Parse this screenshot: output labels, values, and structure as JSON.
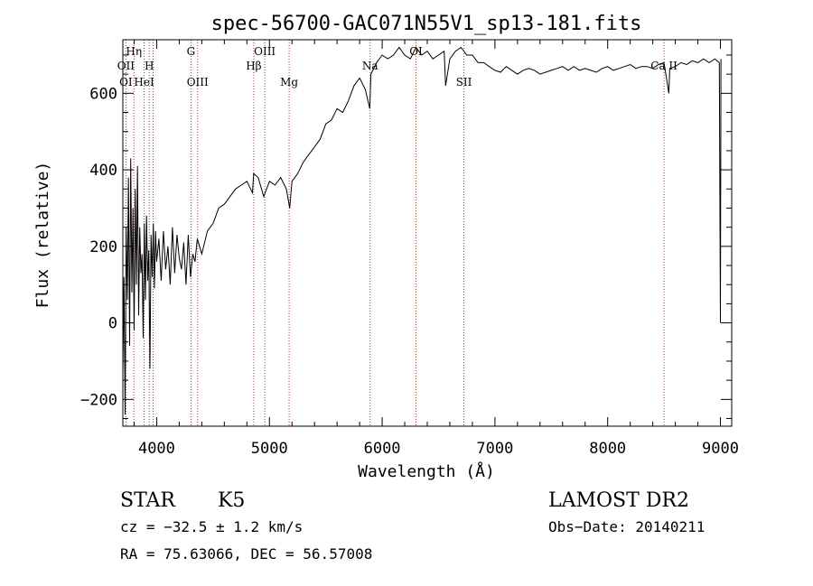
{
  "chart_data": {
    "type": "line",
    "title": "spec-56700-GAC071N55V1_sp13-181.fits",
    "xlabel": "Wavelength (Å)",
    "ylabel": "Flux (relative)",
    "xlim": [
      3700,
      9100
    ],
    "ylim": [
      -270,
      740
    ],
    "x_ticks": [
      4000,
      5000,
      6000,
      7000,
      8000,
      9000
    ],
    "y_ticks": [
      -200,
      0,
      200,
      400,
      600
    ],
    "series": [
      {
        "x": [
          3700,
          3710,
          3720,
          3730,
          3740,
          3750,
          3760,
          3770,
          3780,
          3790,
          3800,
          3810,
          3820,
          3830,
          3840,
          3850,
          3860,
          3870,
          3880,
          3890,
          3900,
          3910,
          3920,
          3930,
          3940,
          3950,
          3960,
          3970,
          3980,
          3990,
          4000,
          4020,
          4040,
          4060,
          4080,
          4100,
          4120,
          4140,
          4160,
          4180,
          4200,
          4220,
          4240,
          4260,
          4280,
          4300,
          4320,
          4340,
          4360,
          4380,
          4400,
          4450,
          4500,
          4550,
          4600,
          4650,
          4700,
          4750,
          4800,
          4850,
          4860,
          4900,
          4950,
          5000,
          5050,
          5100,
          5150,
          5180,
          5200,
          5250,
          5300,
          5350,
          5400,
          5450,
          5500,
          5550,
          5600,
          5650,
          5700,
          5750,
          5800,
          5850,
          5890,
          5900,
          5950,
          6000,
          6050,
          6100,
          6150,
          6200,
          6250,
          6300,
          6350,
          6400,
          6450,
          6500,
          6550,
          6563,
          6600,
          6650,
          6700,
          6750,
          6800,
          6850,
          6900,
          6950,
          7000,
          7050,
          7100,
          7150,
          7200,
          7250,
          7300,
          7350,
          7400,
          7450,
          7500,
          7550,
          7600,
          7650,
          7700,
          7750,
          7800,
          7850,
          7900,
          7950,
          8000,
          8050,
          8100,
          8150,
          8200,
          8250,
          8300,
          8350,
          8400,
          8450,
          8500,
          8542,
          8550,
          8600,
          8650,
          8700,
          8750,
          8800,
          8850,
          8900,
          8950,
          8990,
          9000,
          9005
        ],
        "y": [
          -130,
          120,
          -240,
          250,
          60,
          380,
          -60,
          430,
          80,
          300,
          -20,
          350,
          100,
          410,
          20,
          250,
          130,
          180,
          -40,
          260,
          60,
          280,
          110,
          190,
          -120,
          230,
          120,
          260,
          90,
          240,
          160,
          220,
          110,
          240,
          140,
          200,
          100,
          250,
          130,
          230,
          170,
          140,
          210,
          100,
          230,
          120,
          180,
          160,
          220,
          200,
          180,
          240,
          260,
          300,
          310,
          330,
          350,
          360,
          370,
          340,
          390,
          380,
          330,
          370,
          360,
          380,
          350,
          300,
          370,
          390,
          420,
          440,
          460,
          480,
          520,
          530,
          560,
          550,
          580,
          620,
          640,
          610,
          560,
          650,
          680,
          700,
          690,
          700,
          720,
          700,
          690,
          720,
          700,
          710,
          690,
          700,
          710,
          620,
          690,
          710,
          720,
          700,
          700,
          680,
          680,
          670,
          660,
          655,
          670,
          660,
          650,
          660,
          665,
          660,
          650,
          655,
          660,
          665,
          670,
          660,
          670,
          660,
          665,
          660,
          655,
          665,
          670,
          660,
          665,
          670,
          675,
          665,
          670,
          670,
          665,
          675,
          680,
          600,
          665,
          670,
          680,
          675,
          685,
          680,
          690,
          680,
          690,
          680,
          0,
          690
        ]
      }
    ],
    "lines": [
      {
        "x": 3727,
        "label": "OII",
        "row": 2
      },
      {
        "x": 3798,
        "label": "Hη",
        "row": 1
      },
      {
        "x": 3889,
        "label": "HeI",
        "row": 3
      },
      {
        "x": 3934,
        "label": "H",
        "row": 2
      },
      {
        "x": 3969,
        "label": "",
        "row": 0
      },
      {
        "x": 4304,
        "label": "G",
        "row": 1
      },
      {
        "x": 4363,
        "label": "OIII",
        "row": 3
      },
      {
        "x": 4861,
        "label": "Hβ",
        "row": 2
      },
      {
        "x": 4959,
        "label": "OIII",
        "row": 1
      },
      {
        "x": 5175,
        "label": "Mg",
        "row": 3
      },
      {
        "x": 5893,
        "label": "Na",
        "row": 2
      },
      {
        "x": 6300,
        "label": "OI",
        "row": 1
      },
      {
        "x": 6725,
        "label": "SII",
        "row": 3
      },
      {
        "x": 8500,
        "label": "Ca II",
        "row": 2
      }
    ],
    "line_label_extra": {
      "label": "OI",
      "x": 3727,
      "row": 3
    }
  },
  "footer": {
    "class": "STAR",
    "subclass": "K5",
    "survey": "LAMOST DR2",
    "cz": "cz = −32.5 ± 1.2 km/s",
    "obsdate": "Obs−Date: 20140211",
    "radec": "RA =  75.63066, DEC =  56.57008"
  },
  "colors": {
    "line": "#000000",
    "marker": "#b03020"
  }
}
